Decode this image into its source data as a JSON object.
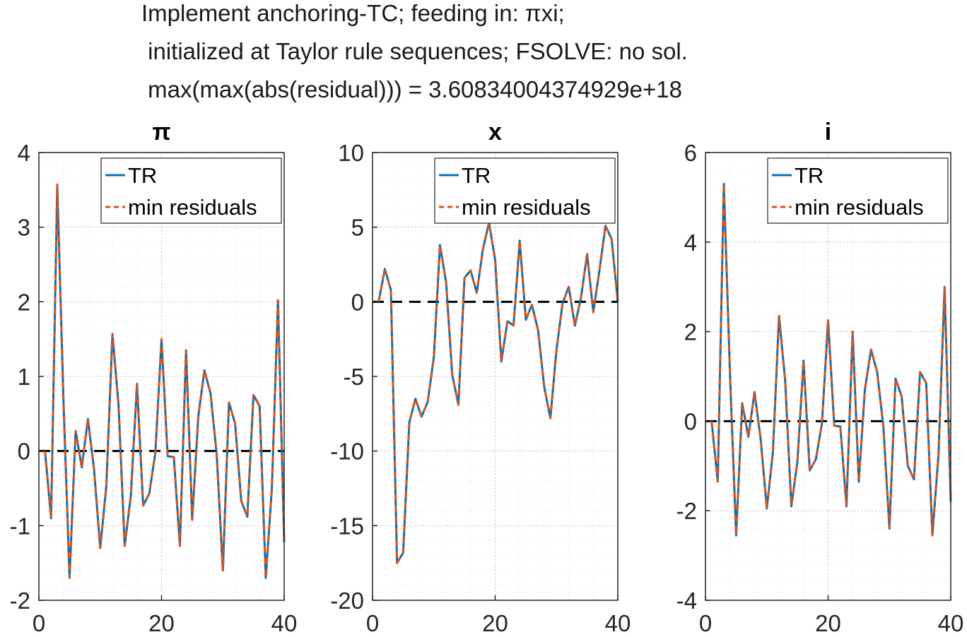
{
  "figure": {
    "suptitle_lines": [
      "Implement anchoring-TC; feeding in: πxi;",
      " initialized at Taylor rule sequences; FSOLVE: no sol.",
      " max(max(abs(residual))) = 3.60834004374929e+18"
    ]
  },
  "colors": {
    "tr": "#0072BD",
    "min_residuals": "#D95319",
    "zero_line": "#000000",
    "grid": "#c8c8c8",
    "axes": "#262626"
  },
  "legend": {
    "entries": [
      "TR",
      "min residuals"
    ],
    "placement": "top-right"
  },
  "chart_data": [
    {
      "type": "line",
      "title": "π",
      "xlabel": "",
      "ylabel": "",
      "xlim": [
        0,
        40
      ],
      "ylim": [
        -2,
        4
      ],
      "xticks": [
        "0",
        "20",
        "40"
      ],
      "yticks": [
        "-2",
        "-1",
        "0",
        "1",
        "2",
        "3",
        "4"
      ],
      "grid": true,
      "minor_grid": true,
      "x": [
        1,
        2,
        3,
        4,
        5,
        6,
        7,
        8,
        9,
        10,
        11,
        12,
        13,
        14,
        15,
        16,
        17,
        18,
        19,
        20,
        21,
        22,
        23,
        24,
        25,
        26,
        27,
        28,
        29,
        30,
        31,
        32,
        33,
        34,
        35,
        36,
        37,
        38,
        39,
        40
      ],
      "series": [
        {
          "name": "TR",
          "style": "solid",
          "values": [
            0,
            -0.9,
            3.57,
            0.7,
            -1.7,
            0.27,
            -0.22,
            0.43,
            -0.25,
            -1.3,
            -0.47,
            1.57,
            0.6,
            -1.27,
            -0.6,
            0.9,
            -0.73,
            -0.57,
            -0.02,
            1.5,
            -0.07,
            -0.08,
            -1.27,
            1.35,
            -0.92,
            0.47,
            1.08,
            0.77,
            -0.05,
            -1.6,
            0.65,
            0.37,
            -0.67,
            -0.88,
            0.75,
            0.6,
            -1.7,
            -0.5,
            2.02,
            -1.22
          ]
        },
        {
          "name": "min residuals",
          "style": "dashed",
          "values": [
            0,
            -0.9,
            3.57,
            0.7,
            -1.7,
            0.27,
            -0.22,
            0.43,
            -0.25,
            -1.3,
            -0.47,
            1.57,
            0.6,
            -1.27,
            -0.6,
            0.9,
            -0.73,
            -0.57,
            -0.02,
            1.5,
            -0.07,
            -0.08,
            -1.27,
            1.35,
            -0.92,
            0.47,
            1.08,
            0.77,
            -0.05,
            -1.6,
            0.65,
            0.37,
            -0.67,
            -0.88,
            0.75,
            0.6,
            -1.7,
            -0.5,
            2.02,
            -1.22
          ]
        }
      ],
      "reference_line": {
        "y": 0,
        "style": "dashed"
      }
    },
    {
      "type": "line",
      "title": "x",
      "xlabel": "",
      "ylabel": "",
      "xlim": [
        0,
        40
      ],
      "ylim": [
        -20,
        10
      ],
      "xticks": [
        "0",
        "20",
        "40"
      ],
      "yticks": [
        "-20",
        "-15",
        "-10",
        "-5",
        "0",
        "5",
        "10"
      ],
      "grid": true,
      "minor_grid": true,
      "x": [
        1,
        2,
        3,
        4,
        5,
        6,
        7,
        8,
        9,
        10,
        11,
        12,
        13,
        14,
        15,
        16,
        17,
        18,
        19,
        20,
        21,
        22,
        23,
        24,
        25,
        26,
        27,
        28,
        29,
        30,
        31,
        32,
        33,
        34,
        35,
        36,
        37,
        38,
        39,
        40
      ],
      "series": [
        {
          "name": "TR",
          "style": "solid",
          "values": [
            0,
            2.2,
            0.8,
            -17.5,
            -16.8,
            -8.1,
            -6.5,
            -7.7,
            -6.7,
            -3.7,
            3.8,
            1.3,
            -4.9,
            -6.9,
            1.6,
            2.1,
            0.6,
            3.5,
            5.3,
            2.8,
            -4,
            -1.3,
            -1.6,
            4.1,
            -1.2,
            -0.2,
            -1.9,
            -5.7,
            -7.8,
            -3.2,
            -0.1,
            1,
            -1.6,
            0.3,
            3.2,
            -0.7,
            2.1,
            5.1,
            4.2,
            0
          ]
        },
        {
          "name": "min residuals",
          "style": "dashed",
          "values": [
            0,
            2.2,
            0.8,
            -17.5,
            -16.8,
            -8.1,
            -6.5,
            -7.7,
            -6.7,
            -3.7,
            3.8,
            1.3,
            -4.9,
            -6.9,
            1.6,
            2.1,
            0.6,
            3.5,
            5.3,
            2.8,
            -4,
            -1.3,
            -1.6,
            4.1,
            -1.2,
            -0.2,
            -1.9,
            -5.7,
            -7.8,
            -3.2,
            -0.1,
            1,
            -1.6,
            0.3,
            3.2,
            -0.7,
            2.1,
            5.1,
            4.2,
            0
          ]
        }
      ],
      "reference_line": {
        "y": 0,
        "style": "dashed"
      }
    },
    {
      "type": "line",
      "title": "i",
      "xlabel": "",
      "ylabel": "",
      "xlim": [
        0,
        40
      ],
      "ylim": [
        -4,
        6
      ],
      "xticks": [
        "0",
        "20",
        "40"
      ],
      "yticks": [
        "-4",
        "-2",
        "0",
        "2",
        "4",
        "6"
      ],
      "grid": true,
      "minor_grid": true,
      "x": [
        1,
        2,
        3,
        4,
        5,
        6,
        7,
        8,
        9,
        10,
        11,
        12,
        13,
        14,
        15,
        16,
        17,
        18,
        19,
        20,
        21,
        22,
        23,
        24,
        25,
        26,
        27,
        28,
        29,
        30,
        31,
        32,
        33,
        34,
        35,
        36,
        37,
        38,
        39,
        40
      ],
      "series": [
        {
          "name": "TR",
          "style": "solid",
          "values": [
            0,
            -1.35,
            5.3,
            1.05,
            -2.55,
            0.4,
            -0.35,
            0.65,
            -0.4,
            -1.95,
            -0.7,
            2.35,
            0.9,
            -1.9,
            -0.9,
            1.35,
            -1.1,
            -0.85,
            -0.05,
            2.25,
            -0.1,
            -0.12,
            -1.9,
            2.0,
            -1.35,
            0.7,
            1.6,
            1.1,
            -0.1,
            -2.4,
            0.95,
            0.55,
            -1.0,
            -1.3,
            1.1,
            0.85,
            -2.55,
            -0.75,
            3.0,
            -1.8
          ]
        },
        {
          "name": "min residuals",
          "style": "dashed",
          "values": [
            0,
            -1.35,
            5.3,
            1.05,
            -2.55,
            0.4,
            -0.35,
            0.65,
            -0.4,
            -1.95,
            -0.7,
            2.35,
            0.9,
            -1.9,
            -0.9,
            1.35,
            -1.1,
            -0.85,
            -0.05,
            2.25,
            -0.1,
            -0.12,
            -1.9,
            2.0,
            -1.35,
            0.7,
            1.6,
            1.1,
            -0.1,
            -2.4,
            0.95,
            0.55,
            -1.0,
            -1.3,
            1.1,
            0.85,
            -2.55,
            -0.75,
            3.0,
            -1.8
          ]
        }
      ],
      "reference_line": {
        "y": 0,
        "style": "dashed"
      }
    }
  ]
}
